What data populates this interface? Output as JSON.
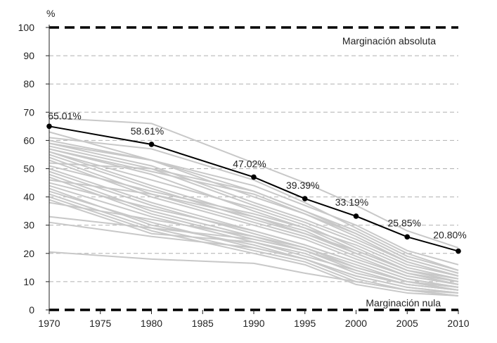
{
  "chart_data": {
    "type": "line",
    "title": "",
    "xlabel": "",
    "ylabel": "%",
    "xlim": [
      1970,
      2010
    ],
    "ylim": [
      0,
      100
    ],
    "x_ticks": [
      1970,
      1975,
      1980,
      1985,
      1990,
      1995,
      2000,
      2005,
      2010
    ],
    "y_ticks": [
      0,
      10,
      20,
      30,
      40,
      50,
      60,
      70,
      80,
      90,
      100
    ],
    "grid": "horizontal dashed",
    "colors": {
      "main": "#000000",
      "background_series": "#c8c8c8",
      "grid": "#b0b0b0",
      "reference": "#000000"
    },
    "reference_lines": [
      {
        "y": 100,
        "label": "Marginación absoluta"
      },
      {
        "y": 0,
        "label": "Marginación nula"
      }
    ],
    "main_series": {
      "x": [
        1970,
        1980,
        1990,
        1995,
        2000,
        2005,
        2010
      ],
      "values": [
        65.01,
        58.61,
        47.02,
        39.39,
        33.19,
        25.85,
        20.8
      ],
      "labels": [
        "65.01%",
        "58.61%",
        "47.02%",
        "39.39%",
        "33.19%",
        "25.85%",
        "20.80%"
      ]
    },
    "background_x": [
      1970,
      1980,
      1990,
      1995,
      2000,
      2005,
      2010
    ],
    "background_series": [
      [
        68,
        66,
        52,
        45,
        37,
        28,
        22
      ],
      [
        63,
        53,
        44,
        37,
        30,
        21,
        16
      ],
      [
        61,
        57,
        46,
        38,
        29,
        20,
        14
      ],
      [
        60,
        53,
        42,
        35,
        28,
        19,
        14
      ],
      [
        59,
        53,
        40,
        34,
        27,
        18,
        13
      ],
      [
        59,
        51,
        38,
        32,
        25,
        17,
        12
      ],
      [
        58,
        50,
        37,
        31,
        24,
        16,
        12
      ],
      [
        57,
        49,
        41,
        34,
        26,
        17,
        12
      ],
      [
        57,
        48,
        35,
        29,
        23,
        15,
        11
      ],
      [
        56,
        46,
        36,
        30,
        22,
        14,
        11
      ],
      [
        56,
        44,
        33,
        27,
        21,
        14,
        10
      ],
      [
        55,
        43,
        32,
        27,
        20,
        13,
        10
      ],
      [
        54,
        41,
        31,
        26,
        19,
        12,
        9
      ],
      [
        53,
        40,
        30,
        25,
        18,
        12,
        9
      ],
      [
        51,
        42,
        34,
        29,
        21,
        14,
        10
      ],
      [
        50,
        38,
        28,
        23,
        17,
        11,
        8
      ],
      [
        49,
        37,
        27,
        22,
        16,
        10,
        8
      ],
      [
        48,
        35,
        26,
        22,
        15,
        10,
        7
      ],
      [
        47,
        34,
        25,
        21,
        14,
        9,
        7
      ],
      [
        45,
        36,
        28,
        23,
        17,
        11,
        8
      ],
      [
        44,
        33,
        24,
        20,
        13,
        9,
        7
      ],
      [
        43,
        30,
        23,
        18,
        12,
        8,
        6
      ],
      [
        42,
        31,
        22,
        18,
        11,
        7,
        6
      ],
      [
        41,
        29,
        21,
        17,
        10,
        7,
        5
      ],
      [
        40,
        28,
        20,
        16,
        9,
        6,
        5
      ],
      [
        39,
        27,
        24,
        19,
        14,
        9,
        7
      ],
      [
        33,
        29,
        25,
        21,
        15,
        10,
        8
      ],
      [
        31,
        26,
        22,
        18,
        12,
        8,
        6
      ],
      [
        20.5,
        18,
        16.5,
        13,
        10,
        7,
        5
      ],
      [
        52,
        50,
        42,
        35,
        27,
        18,
        13
      ],
      [
        46,
        41,
        33,
        28,
        20,
        13,
        9
      ],
      [
        38,
        32,
        26,
        21,
        15,
        10,
        7
      ]
    ]
  }
}
